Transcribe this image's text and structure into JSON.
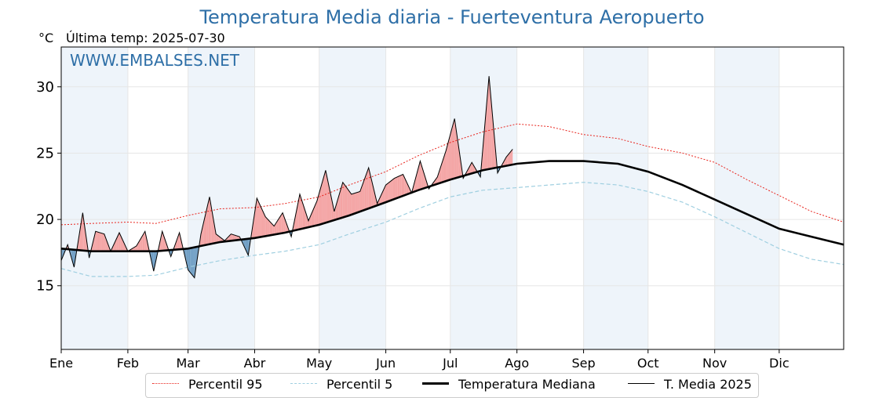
{
  "header": {
    "title": "Temperatura Media diaria - Fuerteventura Aeropuerto",
    "unit": "°C",
    "last_temp": "Última temp: 2025-07-30",
    "watermark": "WWW.EMBALSES.NET"
  },
  "colors": {
    "title": "#2e6fa7",
    "p95": "#e8251e",
    "p5": "#9fcfe0",
    "median": "#000000",
    "current": "#000000",
    "above_fill": "#f4a4a4",
    "below_fill": "#6f9ec4",
    "month_band": "#eef4fa",
    "watermark": "#2e6fa7"
  },
  "legend": [
    {
      "key": "p95",
      "label": "Percentil 95",
      "style": "dotted-red"
    },
    {
      "key": "p5",
      "label": "Percentil 5",
      "style": "dashed-lightblue"
    },
    {
      "key": "median",
      "label": "Temperatura Mediana",
      "style": "thick-black"
    },
    {
      "key": "current",
      "label": "T. Media 2025",
      "style": "thin-black"
    }
  ],
  "chart_data": {
    "type": "line",
    "title": "Temperatura Media diaria - Fuerteventura Aeropuerto",
    "ylabel": "°C",
    "xlim": [
      1,
      365
    ],
    "ylim": [
      10.2,
      33
    ],
    "yticks": [
      15,
      20,
      25,
      30
    ],
    "grid": true,
    "legend_position": "bottom",
    "month_labels": [
      "Ene",
      "Feb",
      "Mar",
      "Abr",
      "May",
      "Jun",
      "Jul",
      "Ago",
      "Sep",
      "Oct",
      "Nov",
      "Dic"
    ],
    "month_start_days": [
      1,
      32,
      60,
      91,
      121,
      152,
      182,
      213,
      244,
      274,
      305,
      335
    ],
    "series": [
      {
        "name": "Percentil 95",
        "key": "p95",
        "x": [
          1,
          15,
          32,
          45,
          60,
          75,
          91,
          105,
          121,
          135,
          152,
          167,
          182,
          197,
          213,
          228,
          244,
          260,
          274,
          290,
          305,
          320,
          335,
          350,
          365
        ],
        "values": [
          19.6,
          19.7,
          19.8,
          19.7,
          20.3,
          20.8,
          20.9,
          21.2,
          21.7,
          22.6,
          23.6,
          24.8,
          25.8,
          26.6,
          27.2,
          27.0,
          26.4,
          26.1,
          25.5,
          25.0,
          24.3,
          23.0,
          21.8,
          20.6,
          19.8
        ]
      },
      {
        "name": "Percentil 5",
        "key": "p5",
        "x": [
          1,
          15,
          32,
          45,
          60,
          75,
          91,
          105,
          121,
          135,
          152,
          167,
          182,
          197,
          213,
          228,
          244,
          260,
          274,
          290,
          305,
          320,
          335,
          350,
          365
        ],
        "values": [
          16.3,
          15.7,
          15.7,
          15.8,
          16.4,
          16.9,
          17.3,
          17.6,
          18.1,
          18.9,
          19.8,
          20.8,
          21.7,
          22.2,
          22.4,
          22.6,
          22.8,
          22.6,
          22.1,
          21.3,
          20.2,
          19.0,
          17.8,
          17.0,
          16.6
        ]
      },
      {
        "name": "Temperatura Mediana",
        "key": "median",
        "x": [
          1,
          15,
          32,
          45,
          60,
          75,
          91,
          105,
          121,
          135,
          152,
          167,
          182,
          197,
          213,
          228,
          244,
          260,
          274,
          290,
          305,
          320,
          335,
          350,
          365
        ],
        "values": [
          17.8,
          17.6,
          17.6,
          17.6,
          17.8,
          18.3,
          18.6,
          19.0,
          19.6,
          20.3,
          21.3,
          22.2,
          23.0,
          23.7,
          24.2,
          24.4,
          24.4,
          24.2,
          23.6,
          22.6,
          21.5,
          20.4,
          19.3,
          18.7,
          18.1
        ]
      },
      {
        "name": "T. Media 2025",
        "key": "current",
        "x": [
          1,
          4,
          7,
          11,
          14,
          17,
          21,
          24,
          28,
          32,
          36,
          40,
          44,
          48,
          52,
          56,
          60,
          63,
          66,
          70,
          73,
          77,
          80,
          84,
          88,
          92,
          96,
          100,
          104,
          108,
          112,
          116,
          120,
          124,
          128,
          132,
          136,
          140,
          144,
          148,
          152,
          156,
          160,
          164,
          168,
          172,
          176,
          180,
          184,
          188,
          192,
          196,
          200,
          204,
          208,
          211
        ],
        "values": [
          16.9,
          18.1,
          16.4,
          20.5,
          17.1,
          19.1,
          18.9,
          17.6,
          19.0,
          17.6,
          18.0,
          19.1,
          16.1,
          19.1,
          17.2,
          19.0,
          16.2,
          15.6,
          18.9,
          21.7,
          18.9,
          18.4,
          18.9,
          18.7,
          17.3,
          21.6,
          20.2,
          19.5,
          20.5,
          18.7,
          21.9,
          19.9,
          21.4,
          23.7,
          20.6,
          22.8,
          21.9,
          22.1,
          23.9,
          21.2,
          22.6,
          23.1,
          23.4,
          22.0,
          24.4,
          22.3,
          23.2,
          25.2,
          27.6,
          23.1,
          24.3,
          23.2,
          30.8,
          23.5,
          24.7,
          25.3
        ]
      }
    ]
  }
}
